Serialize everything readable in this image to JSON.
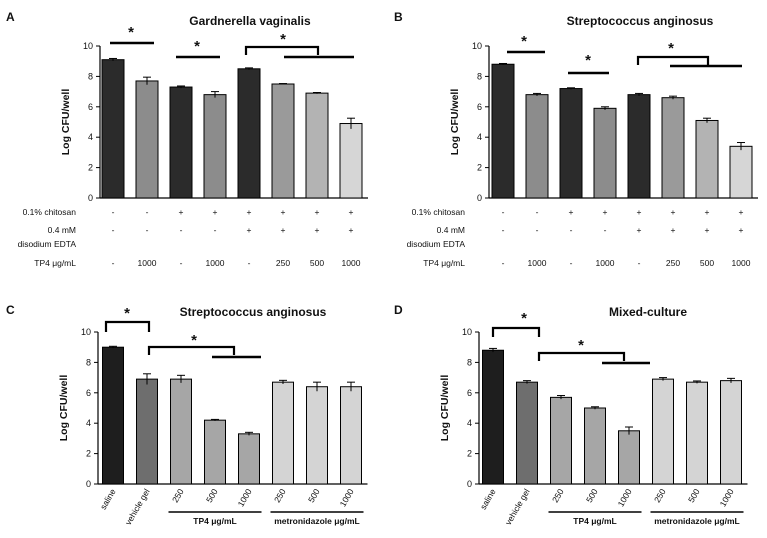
{
  "chart_data": [
    {
      "letter": "A",
      "title": "Gardnerella vaginalis",
      "type": "bar",
      "ylabel": "Log CFU/well",
      "ylim": [
        0,
        10
      ],
      "yticks": [
        "0",
        "2",
        "4",
        "6",
        "8",
        "10"
      ],
      "values": [
        9.1,
        7.7,
        7.3,
        6.8,
        8.5,
        7.5,
        6.9,
        4.9
      ],
      "errors": [
        0.08,
        0.25,
        0.07,
        0.2,
        0.06,
        0.03,
        0.04,
        0.35
      ],
      "colors": [
        "#2b2b2b",
        "#8c8c8c",
        "#2b2b2b",
        "#8c8c8c",
        "#2b2b2b",
        "#9a9a9a",
        "#b3b3b3",
        "#d6d6d6"
      ],
      "conditions": [
        {
          "label": "0.1% chitosan",
          "values": [
            "-",
            "-",
            "+",
            "+",
            "+",
            "+",
            "+",
            "+"
          ]
        },
        {
          "label": "0.4 mM disodium EDTA",
          "values": [
            "-",
            "-",
            "-",
            "-",
            "+",
            "+",
            "+",
            "+"
          ]
        },
        {
          "label": "TP4 μg/mL",
          "values": [
            "-",
            "1000",
            "-",
            "1000",
            "-",
            "250",
            "500",
            "1000"
          ]
        }
      ],
      "significance": [
        "*",
        "*",
        "*"
      ]
    },
    {
      "letter": "B",
      "title": "Streptococcus anginosus",
      "type": "bar",
      "ylabel": "Log CFU/well",
      "ylim": [
        0,
        10
      ],
      "yticks": [
        "0",
        "2",
        "4",
        "6",
        "8",
        "10"
      ],
      "values": [
        8.8,
        6.8,
        7.2,
        5.9,
        6.8,
        6.6,
        5.1,
        3.4
      ],
      "errors": [
        0.05,
        0.08,
        0.05,
        0.1,
        0.08,
        0.1,
        0.15,
        0.25
      ],
      "colors": [
        "#2b2b2b",
        "#8c8c8c",
        "#2b2b2b",
        "#8c8c8c",
        "#2b2b2b",
        "#9a9a9a",
        "#b3b3b3",
        "#d6d6d6"
      ],
      "conditions": [
        {
          "label": "0.1% chitosan",
          "values": [
            "-",
            "-",
            "+",
            "+",
            "+",
            "+",
            "+",
            "+"
          ]
        },
        {
          "label": "0.4 mM disodium EDTA",
          "values": [
            "-",
            "-",
            "-",
            "-",
            "+",
            "+",
            "+",
            "+"
          ]
        },
        {
          "label": "TP4 μg/mL",
          "values": [
            "-",
            "1000",
            "-",
            "1000",
            "-",
            "250",
            "500",
            "1000"
          ]
        }
      ],
      "significance": [
        "*",
        "*",
        "*"
      ]
    },
    {
      "letter": "C",
      "title": "Streptococcus anginosus",
      "type": "bar",
      "ylabel": "Log CFU/well",
      "ylim": [
        0,
        10
      ],
      "yticks": [
        "0",
        "2",
        "4",
        "6",
        "8",
        "10"
      ],
      "categories": [
        "saline",
        "vehicle gel",
        "250",
        "500",
        "1000",
        "250",
        "500",
        "1000"
      ],
      "values": [
        9.0,
        6.9,
        6.9,
        4.2,
        3.3,
        6.7,
        6.4,
        6.4
      ],
      "errors": [
        0.06,
        0.35,
        0.25,
        0.05,
        0.1,
        0.12,
        0.3,
        0.3
      ],
      "colors": [
        "#1e1e1e",
        "#6e6e6e",
        "#a6a6a6",
        "#a6a6a6",
        "#a6a6a6",
        "#d4d4d4",
        "#d4d4d4",
        "#d4d4d4"
      ],
      "groups": [
        {
          "label": "TP4 μg/mL",
          "from": 2,
          "to": 4
        },
        {
          "label": "metronidazole μg/mL",
          "from": 5,
          "to": 7
        }
      ],
      "significance": [
        "*",
        "*"
      ]
    },
    {
      "letter": "D",
      "title": "Mixed-culture",
      "type": "bar",
      "ylabel": "Log CFU/well",
      "ylim": [
        0,
        10
      ],
      "yticks": [
        "0",
        "2",
        "4",
        "6",
        "8",
        "10"
      ],
      "categories": [
        "saline",
        "vehicle gel",
        "250",
        "500",
        "1000",
        "250",
        "500",
        "1000"
      ],
      "values": [
        8.8,
        6.7,
        5.7,
        5.0,
        3.5,
        6.9,
        6.7,
        6.8
      ],
      "errors": [
        0.12,
        0.1,
        0.12,
        0.08,
        0.25,
        0.1,
        0.08,
        0.15
      ],
      "colors": [
        "#1e1e1e",
        "#6e6e6e",
        "#a6a6a6",
        "#a6a6a6",
        "#a6a6a6",
        "#d4d4d4",
        "#d4d4d4",
        "#d4d4d4"
      ],
      "groups": [
        {
          "label": "TP4 μg/mL",
          "from": 2,
          "to": 4
        },
        {
          "label": "metronidazole μg/mL",
          "from": 5,
          "to": 7
        }
      ],
      "significance": [
        "*",
        "*"
      ]
    }
  ]
}
